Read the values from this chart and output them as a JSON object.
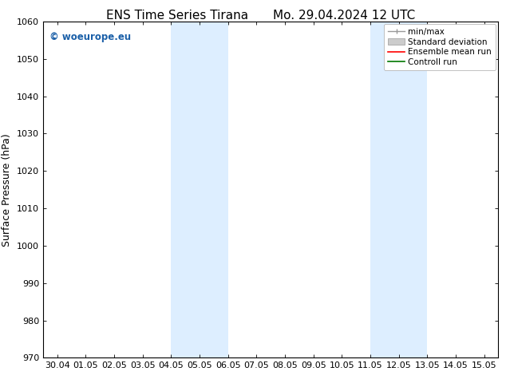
{
  "title_left": "ENS Time Series Tirana",
  "title_right": "Mo. 29.04.2024 12 UTC",
  "ylabel": "Surface Pressure (hPa)",
  "ylim": [
    970,
    1060
  ],
  "yticks": [
    970,
    980,
    990,
    1000,
    1010,
    1020,
    1030,
    1040,
    1050,
    1060
  ],
  "xtick_labels": [
    "30.04",
    "01.05",
    "02.05",
    "03.05",
    "04.05",
    "05.05",
    "06.05",
    "07.05",
    "08.05",
    "09.05",
    "10.05",
    "11.05",
    "12.05",
    "13.05",
    "14.05",
    "15.05"
  ],
  "shaded_regions": [
    {
      "xstart": 4.0,
      "xend": 6.0
    },
    {
      "xstart": 11.0,
      "xend": 13.0
    }
  ],
  "shaded_color": "#ddeeff",
  "watermark_text": "© woeurope.eu",
  "watermark_color": "#1a5fa8",
  "background_color": "#ffffff",
  "legend_items": [
    {
      "label": "min/max",
      "color": "#999999",
      "style": "errorbar"
    },
    {
      "label": "Standard deviation",
      "color": "#cccccc",
      "style": "fill"
    },
    {
      "label": "Ensemble mean run",
      "color": "#ff0000",
      "style": "line"
    },
    {
      "label": "Controll run",
      "color": "#007700",
      "style": "line"
    }
  ],
  "title_fontsize": 11,
  "tick_fontsize": 8,
  "ylabel_fontsize": 9,
  "legend_fontsize": 7.5
}
